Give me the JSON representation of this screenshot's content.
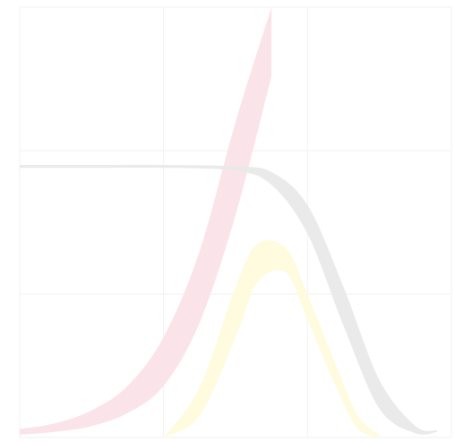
{
  "chart_data": {
    "type": "area",
    "title": "",
    "xlabel": "",
    "ylabel": "",
    "grid": true,
    "legend": "none",
    "xlim": [
      0,
      3
    ],
    "ylim": [
      0,
      3
    ],
    "x_gridlines": [
      0,
      1,
      2,
      3
    ],
    "y_gridlines": [
      0,
      1,
      2,
      3
    ],
    "series": [
      {
        "color": "#fbe3e8",
        "x": [
          0.0,
          0.25,
          0.5,
          0.75,
          1.0,
          1.25,
          1.5,
          1.75
        ],
        "upper": [
          0.06,
          0.1,
          0.19,
          0.36,
          0.7,
          1.3,
          2.2,
          3.0
        ],
        "lower": [
          0.02,
          0.04,
          0.08,
          0.17,
          0.36,
          0.8,
          1.55,
          2.52
        ]
      },
      {
        "color": "#e9e9e9",
        "x": [
          0.0,
          0.5,
          1.0,
          1.5,
          1.75,
          2.0,
          2.25,
          2.5,
          2.75,
          2.9
        ],
        "upper": [
          1.9,
          1.9,
          1.9,
          1.89,
          1.85,
          1.62,
          1.05,
          0.4,
          0.08,
          0.05
        ],
        "lower": [
          1.88,
          1.88,
          1.88,
          1.86,
          1.76,
          1.42,
          0.78,
          0.2,
          0.03,
          0.04
        ]
      },
      {
        "color": "#fffbdc",
        "x": [
          1.0,
          1.25,
          1.5,
          1.65,
          1.85,
          2.0,
          2.2,
          2.35,
          2.5
        ],
        "upper": [
          0.0,
          0.35,
          1.05,
          1.35,
          1.32,
          1.0,
          0.5,
          0.15,
          0.02
        ],
        "lower": [
          0.0,
          0.15,
          0.7,
          1.08,
          1.15,
          0.82,
          0.35,
          0.06,
          0.0
        ]
      }
    ]
  }
}
